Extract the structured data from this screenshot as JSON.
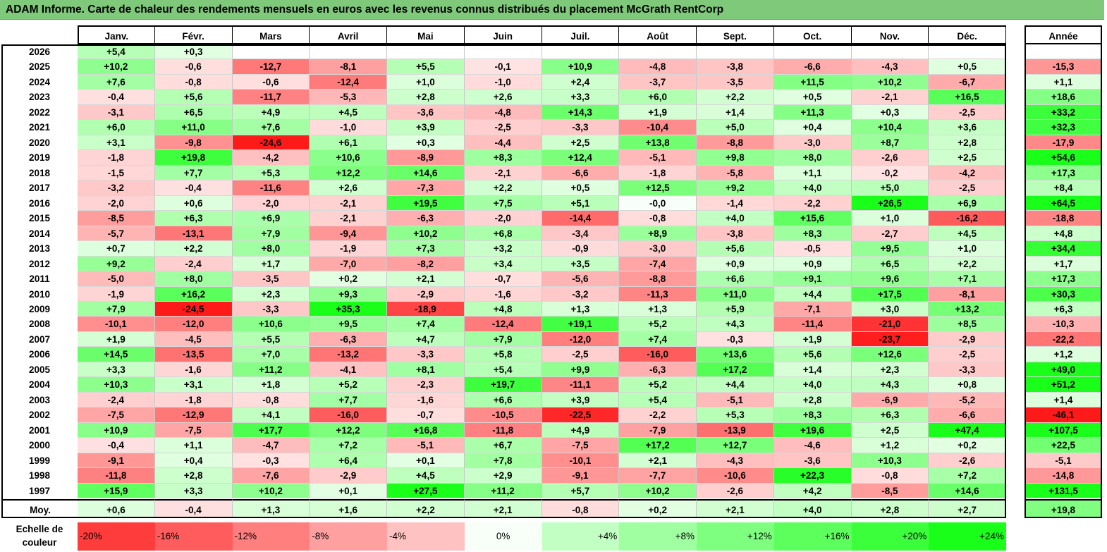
{
  "title": "ADAM Informe. Carte de chaleur des rendements mensuels en euros avec les revenus connus distribués du placement McGrath RentCorp",
  "months": [
    "Janv.",
    "Févr.",
    "Mars",
    "Avril",
    "Mai",
    "Juin",
    "Juil.",
    "Août",
    "Sept.",
    "Oct.",
    "Nov.",
    "Déc."
  ],
  "annual_header": "Année",
  "average_label": "Moy.",
  "scale_title": "Echelle de couleur",
  "colors": {
    "negative": "#ff1a1a",
    "neutral": "#ffffff",
    "positive": "#1aff1a",
    "title_bar": "#7fc97a"
  },
  "chart_data": {
    "type": "heatmap",
    "title": "ADAM Informe. Carte de chaleur des rendements mensuels en euros avec les revenus connus distribués du placement McGrath RentCorp",
    "rows": [
      {
        "year": "2026",
        "months": [
          "+5,4",
          "+0,3",
          "",
          "",
          "",
          "",
          "",
          "",
          "",
          "",
          "",
          ""
        ],
        "year_total": ""
      },
      {
        "year": "2025",
        "months": [
          "+10,2",
          "-0,6",
          "-12,7",
          "-8,1",
          "+5,5",
          "-0,1",
          "+10,9",
          "-4,8",
          "-3,8",
          "-6,6",
          "-4,3",
          "+0,5"
        ],
        "year_total": "-15,3"
      },
      {
        "year": "2024",
        "months": [
          "+7,6",
          "-0,8",
          "-0,6",
          "-12,4",
          "+1,0",
          "-1,0",
          "+2,4",
          "-3,7",
          "-3,5",
          "+11,5",
          "+10,2",
          "-6,7"
        ],
        "year_total": "+1,1"
      },
      {
        "year": "2023",
        "months": [
          "-0,4",
          "+5,6",
          "-11,7",
          "-5,3",
          "+2,8",
          "+2,6",
          "+3,3",
          "+6,0",
          "+2,2",
          "+0,5",
          "-2,1",
          "+16,5"
        ],
        "year_total": "+18,6"
      },
      {
        "year": "2022",
        "months": [
          "-3,1",
          "+6,5",
          "+4,9",
          "+4,5",
          "-3,6",
          "-4,8",
          "+14,3",
          "+1,9",
          "+1,4",
          "+11,3",
          "+0,3",
          "-2,5"
        ],
        "year_total": "+33,2"
      },
      {
        "year": "2021",
        "months": [
          "+6,0",
          "+11,0",
          "+7,6",
          "-1,0",
          "+3,9",
          "-2,5",
          "-3,3",
          "-10,4",
          "+5,0",
          "+0,4",
          "+10,4",
          "+3,6"
        ],
        "year_total": "+32,3"
      },
      {
        "year": "2020",
        "months": [
          "+3,1",
          "-9,8",
          "-24,6",
          "+6,1",
          "+0,3",
          "-4,4",
          "+2,5",
          "+13,8",
          "-8,8",
          "-3,0",
          "+8,7",
          "+2,8"
        ],
        "year_total": "-17,9"
      },
      {
        "year": "2019",
        "months": [
          "-1,8",
          "+19,8",
          "-4,2",
          "+10,6",
          "-8,9",
          "+8,3",
          "+12,4",
          "-5,1",
          "+9,8",
          "+8,0",
          "-2,6",
          "+2,5"
        ],
        "year_total": "+54,6"
      },
      {
        "year": "2018",
        "months": [
          "-1,5",
          "+7,7",
          "+5,3",
          "+12,2",
          "+14,6",
          "-2,1",
          "-6,6",
          "-1,8",
          "-5,8",
          "+1,1",
          "-0,2",
          "-4,2"
        ],
        "year_total": "+17,3"
      },
      {
        "year": "2017",
        "months": [
          "-3,2",
          "-0,4",
          "-11,6",
          "+2,6",
          "-7,3",
          "+2,2",
          "+0,5",
          "+12,5",
          "+9,2",
          "+4,0",
          "+5,0",
          "-2,5"
        ],
        "year_total": "+8,4"
      },
      {
        "year": "2016",
        "months": [
          "-2,0",
          "+0,6",
          "-2,0",
          "-2,1",
          "+19,5",
          "+7,5",
          "+5,1",
          "-0,0",
          "-1,4",
          "-2,2",
          "+26,5",
          "+6,9"
        ],
        "year_total": "+64,5"
      },
      {
        "year": "2015",
        "months": [
          "-8,5",
          "+6,3",
          "+6,9",
          "-2,1",
          "-6,3",
          "-2,0",
          "-14,4",
          "-0,8",
          "+4,0",
          "+15,6",
          "+1,0",
          "-16,2"
        ],
        "year_total": "-18,8"
      },
      {
        "year": "2014",
        "months": [
          "-5,7",
          "-13,1",
          "+7,9",
          "-9,4",
          "+10,2",
          "+6,8",
          "-3,4",
          "+8,9",
          "-3,8",
          "+8,3",
          "-2,7",
          "+4,5"
        ],
        "year_total": "+4,8"
      },
      {
        "year": "2013",
        "months": [
          "+0,7",
          "+2,2",
          "+8,0",
          "-1,9",
          "+7,3",
          "+3,2",
          "-0,9",
          "-3,0",
          "+5,6",
          "-0,5",
          "+9,5",
          "+1,0"
        ],
        "year_total": "+34,4"
      },
      {
        "year": "2012",
        "months": [
          "+9,2",
          "-2,4",
          "+1,7",
          "-7,0",
          "-8,2",
          "+3,4",
          "+3,5",
          "-7,4",
          "+0,9",
          "+0,9",
          "+6,5",
          "+2,2"
        ],
        "year_total": "+1,7"
      },
      {
        "year": "2011",
        "months": [
          "-5,0",
          "+8,0",
          "-3,5",
          "+0,2",
          "+2,1",
          "-0,7",
          "-5,6",
          "-8,8",
          "+6,6",
          "+9,1",
          "+9,6",
          "+7,1"
        ],
        "year_total": "+17,3"
      },
      {
        "year": "2010",
        "months": [
          "-1,9",
          "+16,2",
          "+2,3",
          "+9,3",
          "-2,9",
          "-1,6",
          "-3,2",
          "-11,3",
          "+11,0",
          "+4,4",
          "+17,5",
          "-8,1"
        ],
        "year_total": "+30,3"
      },
      {
        "year": "2009",
        "months": [
          "+7,9",
          "-24,5",
          "-3,3",
          "+35,3",
          "-18,9",
          "+4,8",
          "+1,3",
          "+1,3",
          "+5,9",
          "-7,1",
          "+3,0",
          "+13,2"
        ],
        "year_total": "+6,3"
      },
      {
        "year": "2008",
        "months": [
          "-10,1",
          "-12,0",
          "+10,6",
          "+9,5",
          "+7,4",
          "-12,4",
          "+19,1",
          "+5,2",
          "+4,3",
          "-11,4",
          "-21,0",
          "+8,5"
        ],
        "year_total": "-10,3"
      },
      {
        "year": "2007",
        "months": [
          "+1,9",
          "-4,5",
          "+5,5",
          "-6,3",
          "+4,7",
          "+7,9",
          "-12,0",
          "+7,4",
          "-0,3",
          "+1,9",
          "-23,7",
          "-2,9"
        ],
        "year_total": "-22,2"
      },
      {
        "year": "2006",
        "months": [
          "+14,5",
          "-13,5",
          "+7,0",
          "-13,2",
          "-3,3",
          "+5,8",
          "-2,5",
          "-16,0",
          "+13,6",
          "+5,6",
          "+12,6",
          "-2,5"
        ],
        "year_total": "+1,2"
      },
      {
        "year": "2005",
        "months": [
          "+3,3",
          "-1,6",
          "+11,2",
          "-4,1",
          "+8,1",
          "+5,4",
          "+9,9",
          "-6,3",
          "+17,2",
          "+1,4",
          "+2,3",
          "-3,3"
        ],
        "year_total": "+49,0"
      },
      {
        "year": "2004",
        "months": [
          "+10,3",
          "+3,1",
          "+1,8",
          "+5,2",
          "-2,3",
          "+19,7",
          "-11,1",
          "+5,2",
          "+4,4",
          "+4,0",
          "+4,3",
          "+0,8"
        ],
        "year_total": "+51,2"
      },
      {
        "year": "2003",
        "months": [
          "-2,4",
          "-1,8",
          "-0,8",
          "+7,7",
          "-1,6",
          "+6,6",
          "+3,9",
          "+5,4",
          "-5,1",
          "+2,8",
          "-6,9",
          "-5,2"
        ],
        "year_total": "+1,4"
      },
      {
        "year": "2002",
        "months": [
          "-7,5",
          "-12,9",
          "+4,1",
          "-16,0",
          "-0,7",
          "-10,5",
          "-22,5",
          "-2,2",
          "+5,3",
          "+8,3",
          "+6,3",
          "-6,6"
        ],
        "year_total": "-46,1"
      },
      {
        "year": "2001",
        "months": [
          "+10,9",
          "-7,5",
          "+17,7",
          "+12,2",
          "+16,8",
          "-11,8",
          "+4,9",
          "-7,9",
          "-13,9",
          "+19,6",
          "+2,5",
          "+47,4"
        ],
        "year_total": "+107,5"
      },
      {
        "year": "2000",
        "months": [
          "-0,4",
          "+1,1",
          "-4,7",
          "+7,2",
          "-5,1",
          "+6,7",
          "-7,5",
          "+17,2",
          "+12,7",
          "-4,6",
          "+1,2",
          "+0,2"
        ],
        "year_total": "+22,5"
      },
      {
        "year": "1999",
        "months": [
          "-9,1",
          "+0,4",
          "-0,3",
          "+6,4",
          "+0,1",
          "+7,8",
          "-10,1",
          "+2,1",
          "-4,3",
          "-3,6",
          "+10,3",
          "-2,6"
        ],
        "year_total": "-5,1"
      },
      {
        "year": "1998",
        "months": [
          "-11,8",
          "+2,8",
          "-7,6",
          "-2,9",
          "+4,5",
          "+2,9",
          "-9,1",
          "-7,7",
          "-10,6",
          "+22,3",
          "-0,8",
          "+7,2"
        ],
        "year_total": "-14,8"
      },
      {
        "year": "1997",
        "months": [
          "+15,9",
          "+3,3",
          "+10,2",
          "+0,1",
          "+27,5",
          "+11,2",
          "+5,7",
          "+10,2",
          "-2,6",
          "+4,2",
          "-8,5",
          "+14,6"
        ],
        "year_total": "+131,5"
      }
    ],
    "average": {
      "months": [
        "+0,6",
        "-0,4",
        "+1,3",
        "+1,6",
        "+2,2",
        "+2,1",
        "-0,8",
        "+0,2",
        "+2,1",
        "+4,0",
        "+2,8",
        "+2,7"
      ],
      "year_total": "+19,8"
    },
    "color_scale": [
      "-20%",
      "-16%",
      "-12%",
      "-8%",
      "-4%",
      "0%",
      "+4%",
      "+8%",
      "+12%",
      "+16%",
      "+20%",
      "+24%"
    ]
  }
}
